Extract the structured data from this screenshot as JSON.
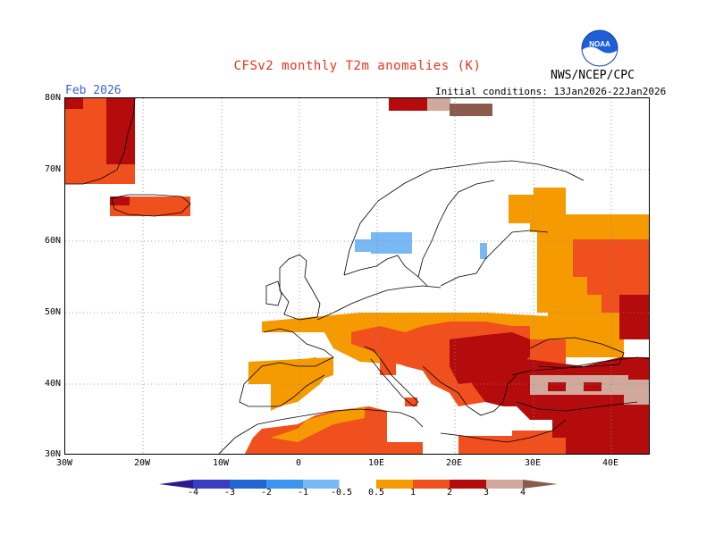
{
  "header": {
    "title": "CFSv2 monthly T2m anomalies (K)",
    "agency": "NWS/NCEP/CPC",
    "logo_text": "NOAA",
    "month": "Feb 2026",
    "initial_conditions": "Initial conditions: 13Jan2026-22Jan2026"
  },
  "map": {
    "lat_labels": [
      "80N",
      "70N",
      "60N",
      "50N",
      "40N",
      "30N"
    ],
    "lon_labels": [
      "30W",
      "20W",
      "10W",
      "0",
      "10E",
      "20E",
      "30E",
      "40E"
    ],
    "lat_range": [
      30,
      80
    ],
    "lon_range": [
      -30,
      45
    ],
    "graticule_step_deg": 10
  },
  "colorbar": {
    "labels": [
      "-4",
      "-3",
      "-2",
      "-1",
      "-0.5",
      "0.5",
      "1",
      "2",
      "3",
      "4"
    ],
    "colors": {
      "lt_-4": "#2a1a8c",
      "-4_-3": "#3a3cc4",
      "-3_-2": "#1f66d2",
      "-2_-1": "#3a94f0",
      "-1_-0.5": "#78b8f5",
      "-0.5_0.5": "#ffffff",
      "0.5_1": "#f59a00",
      "1_2": "#f0501e",
      "2_3": "#b40c0c",
      "3_4": "#d1a99c",
      "gt_4": "#8a5a4c"
    }
  },
  "anomaly_colors": {
    "warm_0.5_1": "#f59a00",
    "warm_1_2": "#f0501e",
    "warm_2_3": "#b40c0c",
    "warm_3_4": "#d1a99c",
    "cool_-1_-0.5": "#78b8f5"
  }
}
